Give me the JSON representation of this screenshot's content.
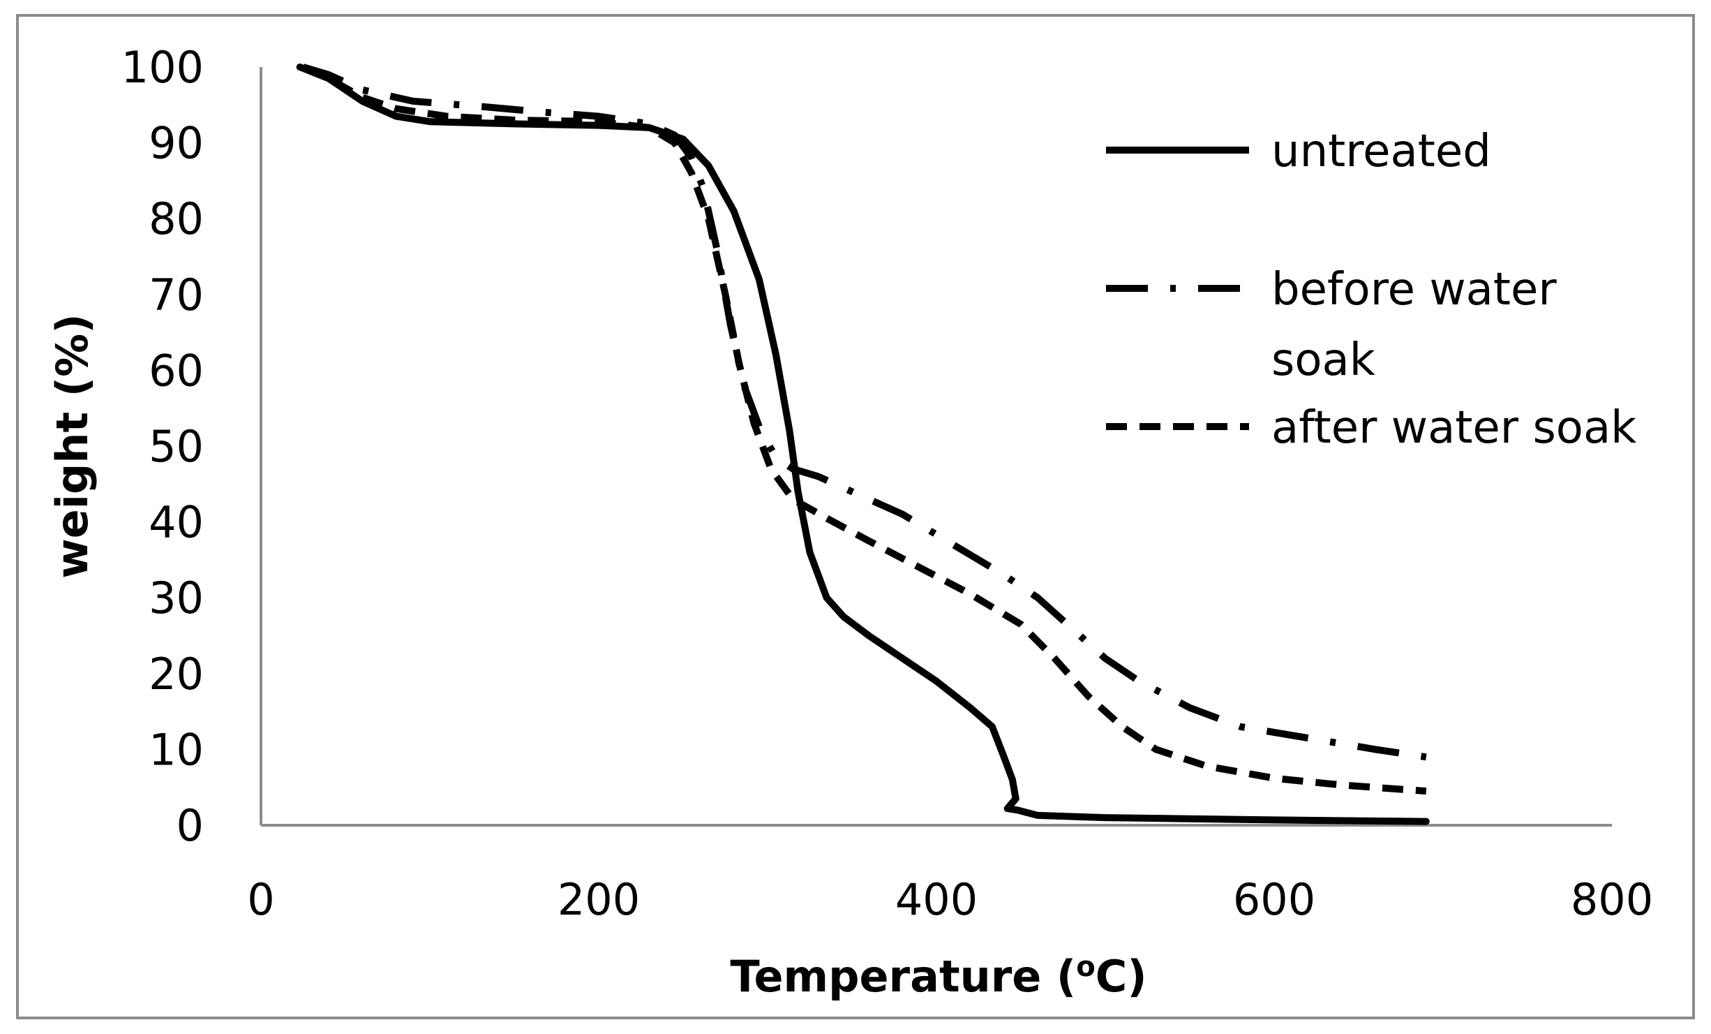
{
  "chart_data": {
    "type": "line",
    "title": "",
    "xlabel": "Temperature (",
    "xlabel_sup": "o",
    "xlabel_unit": "C)",
    "ylabel": "weight (%)",
    "xlim": [
      0,
      800
    ],
    "ylim": [
      0,
      100
    ],
    "x_ticks": [
      0,
      200,
      400,
      600,
      800
    ],
    "y_ticks": [
      0,
      10,
      20,
      30,
      40,
      50,
      60,
      70,
      80,
      90,
      100
    ],
    "grid": false,
    "legend_position": "top-right",
    "series": [
      {
        "name": "untreated",
        "style": "solid",
        "points": [
          [
            23,
            100
          ],
          [
            40,
            98.5
          ],
          [
            60,
            95.5
          ],
          [
            80,
            93.5
          ],
          [
            100,
            92.8
          ],
          [
            150,
            92.5
          ],
          [
            200,
            92.3
          ],
          [
            230,
            92
          ],
          [
            250,
            90.5
          ],
          [
            265,
            87
          ],
          [
            280,
            81
          ],
          [
            295,
            72
          ],
          [
            305,
            62
          ],
          [
            313,
            52
          ],
          [
            318,
            44
          ],
          [
            325,
            36
          ],
          [
            335,
            30
          ],
          [
            345,
            27.5
          ],
          [
            360,
            25
          ],
          [
            380,
            22
          ],
          [
            400,
            19
          ],
          [
            420,
            15.5
          ],
          [
            433,
            13
          ],
          [
            440,
            9
          ],
          [
            445,
            6
          ],
          [
            447,
            3.5
          ],
          [
            442,
            2.2
          ],
          [
            448,
            2
          ],
          [
            460,
            1.3
          ],
          [
            500,
            1
          ],
          [
            600,
            0.7
          ],
          [
            690,
            0.5
          ]
        ]
      },
      {
        "name": "before water soak",
        "name_line1": "before water",
        "name_line2": "soak",
        "style": "dash-dot",
        "points": [
          [
            25,
            100
          ],
          [
            40,
            99
          ],
          [
            60,
            97
          ],
          [
            90,
            95.5
          ],
          [
            130,
            94.8
          ],
          [
            170,
            94
          ],
          [
            200,
            93.5
          ],
          [
            230,
            92.5
          ],
          [
            245,
            91
          ],
          [
            255,
            88
          ],
          [
            262,
            84
          ],
          [
            270,
            76
          ],
          [
            278,
            66
          ],
          [
            286,
            58
          ],
          [
            296,
            52
          ],
          [
            305,
            48.5
          ],
          [
            315,
            47
          ],
          [
            330,
            46
          ],
          [
            350,
            44
          ],
          [
            380,
            41
          ],
          [
            410,
            37
          ],
          [
            440,
            33
          ],
          [
            460,
            30
          ],
          [
            480,
            26
          ],
          [
            500,
            22
          ],
          [
            520,
            19
          ],
          [
            550,
            15.5
          ],
          [
            580,
            13
          ],
          [
            620,
            11.5
          ],
          [
            660,
            10
          ],
          [
            690,
            9
          ]
        ]
      },
      {
        "name": "after water soak",
        "style": "dashed",
        "points": [
          [
            25,
            100
          ],
          [
            40,
            98.5
          ],
          [
            60,
            96
          ],
          [
            80,
            94.5
          ],
          [
            110,
            93.5
          ],
          [
            150,
            93
          ],
          [
            200,
            92.8
          ],
          [
            230,
            92
          ],
          [
            245,
            90
          ],
          [
            255,
            86
          ],
          [
            265,
            80
          ],
          [
            275,
            70
          ],
          [
            283,
            61
          ],
          [
            292,
            53
          ],
          [
            302,
            47
          ],
          [
            315,
            43
          ],
          [
            335,
            40.5
          ],
          [
            360,
            37.5
          ],
          [
            390,
            34
          ],
          [
            420,
            30.5
          ],
          [
            450,
            26.5
          ],
          [
            470,
            22
          ],
          [
            490,
            17
          ],
          [
            510,
            13
          ],
          [
            530,
            10
          ],
          [
            560,
            7.8
          ],
          [
            600,
            6.2
          ],
          [
            640,
            5.3
          ],
          [
            690,
            4.5
          ]
        ]
      }
    ]
  }
}
